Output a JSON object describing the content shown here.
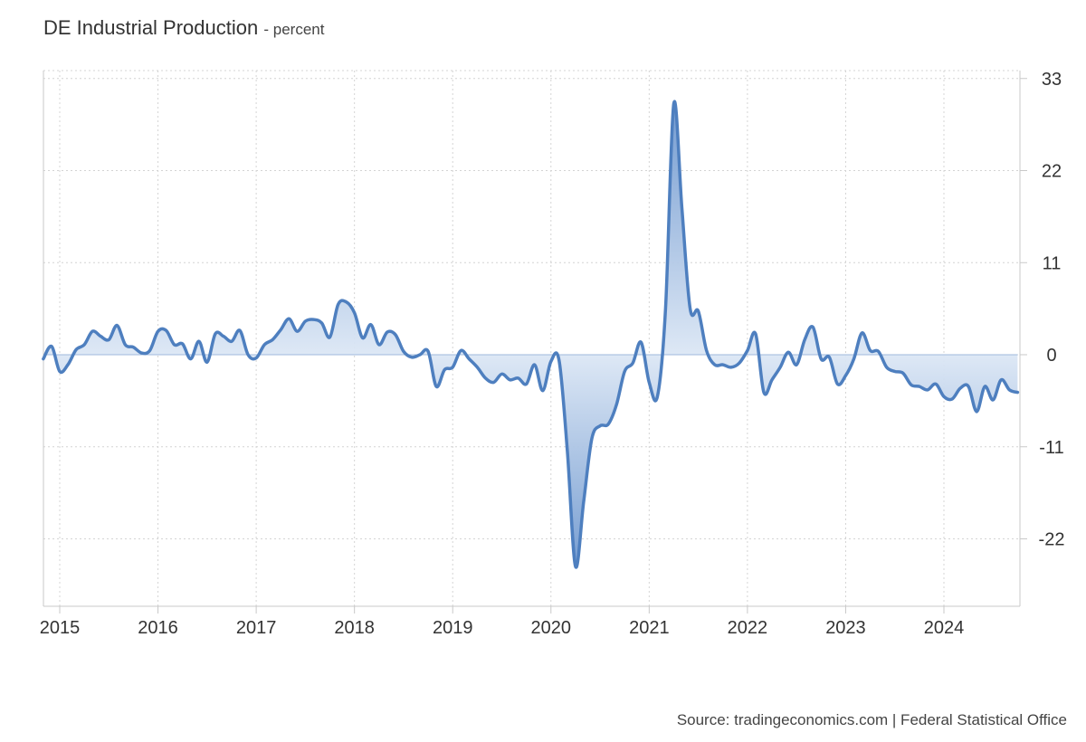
{
  "header": {
    "title": "DE Industrial Production",
    "subtitle": "- percent"
  },
  "footer": {
    "source": "Source: tradingeconomics.com | Federal Statistical Office"
  },
  "colors": {
    "line": "#4e7fbf",
    "fill_top": "#6f98cf",
    "fill_bottom": "#dce7f5",
    "grid": "#d4d4d4",
    "axis": "#c8c8c8",
    "text": "#333333"
  },
  "chart_data": {
    "type": "area",
    "title": "DE Industrial Production",
    "subtitle": "- percent",
    "xlabel": "",
    "ylabel": "",
    "ylim": [
      -30,
      33
    ],
    "y_axis_side": "right",
    "y_ticks": [
      33,
      22,
      11,
      0,
      -11,
      -22
    ],
    "x_ticks": [
      "2015",
      "2016",
      "2017",
      "2018",
      "2019",
      "2020",
      "2021",
      "2022",
      "2023",
      "2024"
    ],
    "grid": true,
    "legend": "none",
    "series": [
      {
        "points": [
          [
            "2014-11",
            -0.5
          ],
          [
            "2014-12",
            1.0
          ],
          [
            "2015-01",
            -2.0
          ],
          [
            "2015-02",
            -1.2
          ],
          [
            "2015-03",
            0.6
          ],
          [
            "2015-04",
            1.2
          ],
          [
            "2015-05",
            2.8
          ],
          [
            "2015-06",
            2.2
          ],
          [
            "2015-07",
            1.8
          ],
          [
            "2015-08",
            3.5
          ],
          [
            "2015-09",
            1.2
          ],
          [
            "2015-10",
            0.9
          ],
          [
            "2015-11",
            0.2
          ],
          [
            "2015-12",
            0.5
          ],
          [
            "2016-01",
            2.8
          ],
          [
            "2016-02",
            2.9
          ],
          [
            "2016-03",
            1.2
          ],
          [
            "2016-04",
            1.3
          ],
          [
            "2016-05",
            -0.5
          ],
          [
            "2016-06",
            1.6
          ],
          [
            "2016-07",
            -0.9
          ],
          [
            "2016-08",
            2.5
          ],
          [
            "2016-09",
            2.2
          ],
          [
            "2016-10",
            1.6
          ],
          [
            "2016-11",
            2.9
          ],
          [
            "2016-12",
            0.0
          ],
          [
            "2017-01",
            -0.4
          ],
          [
            "2017-02",
            1.2
          ],
          [
            "2017-03",
            1.8
          ],
          [
            "2017-04",
            3.0
          ],
          [
            "2017-05",
            4.3
          ],
          [
            "2017-06",
            2.8
          ],
          [
            "2017-07",
            4.0
          ],
          [
            "2017-08",
            4.2
          ],
          [
            "2017-09",
            3.8
          ],
          [
            "2017-10",
            2.1
          ],
          [
            "2017-11",
            6.0
          ],
          [
            "2017-12",
            6.3
          ],
          [
            "2018-01",
            5.0
          ],
          [
            "2018-02",
            2.0
          ],
          [
            "2018-03",
            3.6
          ],
          [
            "2018-04",
            1.2
          ],
          [
            "2018-05",
            2.7
          ],
          [
            "2018-06",
            2.4
          ],
          [
            "2018-07",
            0.4
          ],
          [
            "2018-08",
            -0.3
          ],
          [
            "2018-09",
            0.0
          ],
          [
            "2018-10",
            0.4
          ],
          [
            "2018-11",
            -3.8
          ],
          [
            "2018-12",
            -1.8
          ],
          [
            "2019-01",
            -1.5
          ],
          [
            "2019-02",
            0.5
          ],
          [
            "2019-03",
            -0.5
          ],
          [
            "2019-04",
            -1.5
          ],
          [
            "2019-05",
            -2.8
          ],
          [
            "2019-06",
            -3.3
          ],
          [
            "2019-07",
            -2.3
          ],
          [
            "2019-08",
            -3.0
          ],
          [
            "2019-09",
            -2.8
          ],
          [
            "2019-10",
            -3.5
          ],
          [
            "2019-11",
            -1.2
          ],
          [
            "2019-12",
            -4.3
          ],
          [
            "2020-01",
            -0.8
          ],
          [
            "2020-02",
            -0.7
          ],
          [
            "2020-03",
            -11.5
          ],
          [
            "2020-04",
            -25.3
          ],
          [
            "2020-05",
            -17.5
          ],
          [
            "2020-06",
            -10.0
          ],
          [
            "2020-07",
            -8.5
          ],
          [
            "2020-08",
            -8.3
          ],
          [
            "2020-09",
            -6.0
          ],
          [
            "2020-10",
            -2.0
          ],
          [
            "2020-11",
            -1.0
          ],
          [
            "2020-12",
            1.5
          ],
          [
            "2021-01",
            -3.3
          ],
          [
            "2021-02",
            -5.0
          ],
          [
            "2021-03",
            5.5
          ],
          [
            "2021-04",
            30.0
          ],
          [
            "2021-05",
            17.5
          ],
          [
            "2021-06",
            5.5
          ],
          [
            "2021-07",
            5.2
          ],
          [
            "2021-08",
            0.5
          ],
          [
            "2021-09",
            -1.2
          ],
          [
            "2021-10",
            -1.2
          ],
          [
            "2021-11",
            -1.5
          ],
          [
            "2021-12",
            -1.0
          ],
          [
            "2022-01",
            0.5
          ],
          [
            "2022-02",
            2.5
          ],
          [
            "2022-03",
            -4.5
          ],
          [
            "2022-04",
            -3.0
          ],
          [
            "2022-05",
            -1.5
          ],
          [
            "2022-06",
            0.3
          ],
          [
            "2022-07",
            -1.2
          ],
          [
            "2022-08",
            1.8
          ],
          [
            "2022-09",
            3.3
          ],
          [
            "2022-10",
            -0.5
          ],
          [
            "2022-11",
            -0.3
          ],
          [
            "2022-12",
            -3.5
          ],
          [
            "2023-01",
            -2.5
          ],
          [
            "2023-02",
            -0.5
          ],
          [
            "2023-03",
            2.6
          ],
          [
            "2023-04",
            0.5
          ],
          [
            "2023-05",
            0.4
          ],
          [
            "2023-06",
            -1.5
          ],
          [
            "2023-07",
            -2.0
          ],
          [
            "2023-08",
            -2.2
          ],
          [
            "2023-09",
            -3.6
          ],
          [
            "2023-10",
            -3.8
          ],
          [
            "2023-11",
            -4.2
          ],
          [
            "2023-12",
            -3.5
          ],
          [
            "2024-01",
            -5.0
          ],
          [
            "2024-02",
            -5.3
          ],
          [
            "2024-03",
            -4.0
          ],
          [
            "2024-04",
            -3.8
          ],
          [
            "2024-05",
            -6.8
          ],
          [
            "2024-06",
            -3.8
          ],
          [
            "2024-07",
            -5.4
          ],
          [
            "2024-08",
            -3.0
          ],
          [
            "2024-09",
            -4.2
          ],
          [
            "2024-10",
            -4.5
          ]
        ]
      }
    ]
  }
}
